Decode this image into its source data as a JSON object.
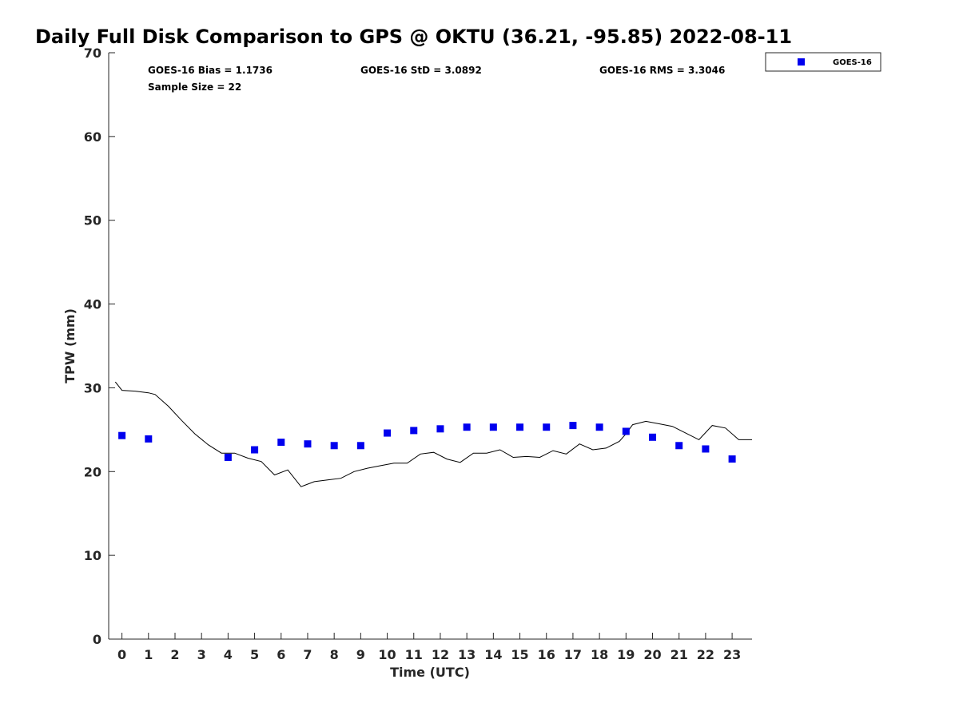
{
  "chart_data": {
    "type": "scatter",
    "title": "Daily Full Disk Comparison to GPS @ OKTU (36.21, -95.85) 2022-08-11",
    "xlabel": "Time (UTC)",
    "ylabel": "TPW (mm)",
    "xlim": [
      -0.5,
      23.75
    ],
    "ylim": [
      0,
      70
    ],
    "x_ticks": [
      0,
      1,
      2,
      3,
      4,
      5,
      6,
      7,
      8,
      9,
      10,
      11,
      12,
      13,
      14,
      15,
      16,
      17,
      18,
      19,
      20,
      21,
      22,
      23
    ],
    "y_ticks": [
      0,
      10,
      20,
      30,
      40,
      50,
      60,
      70
    ],
    "grid": false,
    "legend_position": "top-right",
    "stats": {
      "bias": "GOES-16 Bias = 1.1736",
      "std": "GOES-16 StD = 3.0892",
      "rms": "GOES-16 RMS = 3.3046",
      "sample_size": "Sample Size = 22"
    },
    "series": [
      {
        "name": "GOES-16",
        "type": "scatter",
        "color": "#0000ee",
        "marker": "square",
        "x": [
          0,
          1,
          4,
          5,
          6,
          7,
          8,
          9,
          10,
          11,
          12,
          13,
          14,
          15,
          16,
          17,
          18,
          19,
          20,
          21,
          22,
          23
        ],
        "y": [
          24.3,
          23.9,
          21.7,
          22.6,
          23.5,
          23.3,
          23.1,
          23.1,
          24.6,
          24.9,
          25.1,
          25.3,
          25.3,
          25.3,
          25.3,
          25.5,
          25.3,
          24.8,
          24.1,
          23.1,
          22.7,
          21.5
        ]
      },
      {
        "type": "line",
        "color": "#000000",
        "x": [
          -0.25,
          0.0,
          0.5,
          1.0,
          1.25,
          1.75,
          2.25,
          2.75,
          3.25,
          3.75,
          4.25,
          4.75,
          5.25,
          5.75,
          6.25,
          6.75,
          7.25,
          7.75,
          8.25,
          8.75,
          9.25,
          9.75,
          10.25,
          10.75,
          11.25,
          11.75,
          12.25,
          12.75,
          13.25,
          13.75,
          14.25,
          14.75,
          15.25,
          15.75,
          16.25,
          16.75,
          17.25,
          17.75,
          18.25,
          18.75,
          19.0,
          19.25,
          19.75,
          20.25,
          20.75,
          21.25,
          21.75,
          22.25,
          22.75,
          23.25,
          23.75
        ],
        "y": [
          30.7,
          29.7,
          29.6,
          29.4,
          29.2,
          27.8,
          26.1,
          24.5,
          23.2,
          22.2,
          22.2,
          21.6,
          21.2,
          19.6,
          20.2,
          18.2,
          18.8,
          19.0,
          19.2,
          20.0,
          20.4,
          20.7,
          21.0,
          21.0,
          22.1,
          22.3,
          21.5,
          21.1,
          22.2,
          22.2,
          22.6,
          21.7,
          21.8,
          21.7,
          22.5,
          22.1,
          23.3,
          22.6,
          22.8,
          23.6,
          24.5,
          25.6,
          26.0,
          25.7,
          25.4,
          24.6,
          23.8,
          25.5,
          25.2,
          23.8,
          23.8
        ]
      }
    ]
  }
}
